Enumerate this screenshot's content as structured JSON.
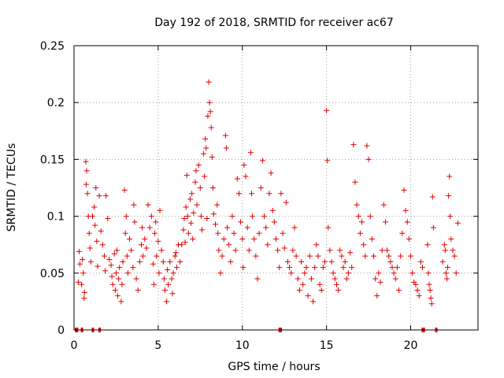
{
  "chart_data": {
    "type": "scatter",
    "title": "Day 192 of 2018, SRMTID for receiver ac67",
    "xlabel": "GPS time / hours",
    "ylabel": "SRMTID / TECUs",
    "xlim": [
      0,
      24
    ],
    "ylim": [
      0,
      0.25
    ],
    "xticks": [
      "0",
      "5",
      "10",
      "15",
      "20"
    ],
    "xtick_values": [
      0,
      5,
      10,
      15,
      20
    ],
    "yticks": [
      "0",
      "0.05",
      "0.1",
      "0.15",
      "0.2",
      "0.25"
    ],
    "ytick_values": [
      0,
      0.05,
      0.1,
      0.15,
      0.2,
      0.25
    ],
    "grid": true,
    "marker": "+",
    "color": "#e00000",
    "series": [
      {
        "name": "SRMTID",
        "points": [
          [
            0.25,
            0.042
          ],
          [
            0.3,
            0.069
          ],
          [
            0.35,
            0.058
          ],
          [
            0.45,
            0.04
          ],
          [
            0.5,
            0.062
          ],
          [
            0.55,
            0.05
          ],
          [
            0.6,
            0.028
          ],
          [
            0.62,
            0.033
          ],
          [
            0.7,
            0.148
          ],
          [
            0.72,
            0.128
          ],
          [
            0.75,
            0.14
          ],
          [
            0.8,
            0.12
          ],
          [
            0.85,
            0.1
          ],
          [
            0.9,
            0.085
          ],
          [
            0.95,
            0.072
          ],
          [
            1.0,
            0.06
          ],
          [
            1.1,
            0.1
          ],
          [
            1.2,
            0.108
          ],
          [
            1.25,
            0.092
          ],
          [
            1.3,
            0.125
          ],
          [
            1.35,
            0.078
          ],
          [
            1.4,
            0.056
          ],
          [
            1.5,
            0.118
          ],
          [
            1.6,
            0.087
          ],
          [
            1.7,
            0.075
          ],
          [
            1.8,
            0.065
          ],
          [
            1.85,
            0.052
          ],
          [
            1.9,
            0.118
          ],
          [
            2.0,
            0.098
          ],
          [
            2.1,
            0.062
          ],
          [
            2.2,
            0.057
          ],
          [
            2.25,
            0.047
          ],
          [
            2.3,
            0.04
          ],
          [
            2.4,
            0.067
          ],
          [
            2.45,
            0.035
          ],
          [
            2.5,
            0.05
          ],
          [
            2.55,
            0.07
          ],
          [
            2.6,
            0.03
          ],
          [
            2.65,
            0.045
          ],
          [
            2.7,
            0.055
          ],
          [
            2.8,
            0.025
          ],
          [
            2.85,
            0.04
          ],
          [
            2.9,
            0.06
          ],
          [
            3.0,
            0.123
          ],
          [
            3.05,
            0.085
          ],
          [
            3.1,
            0.1
          ],
          [
            3.15,
            0.065
          ],
          [
            3.2,
            0.05
          ],
          [
            3.3,
            0.08
          ],
          [
            3.4,
            0.07
          ],
          [
            3.5,
            0.055
          ],
          [
            3.55,
            0.11
          ],
          [
            3.6,
            0.095
          ],
          [
            3.7,
            0.045
          ],
          [
            3.8,
            0.035
          ],
          [
            3.9,
            0.06
          ],
          [
            4.0,
            0.075
          ],
          [
            4.05,
            0.09
          ],
          [
            4.1,
            0.065
          ],
          [
            4.2,
            0.08
          ],
          [
            4.3,
            0.072
          ],
          [
            4.4,
            0.11
          ],
          [
            4.5,
            0.09
          ],
          [
            4.6,
            0.1
          ],
          [
            4.7,
            0.058
          ],
          [
            4.75,
            0.04
          ],
          [
            4.8,
            0.085
          ],
          [
            4.85,
            0.095
          ],
          [
            4.9,
            0.065
          ],
          [
            5.0,
            0.078
          ],
          [
            5.05,
            0.05
          ],
          [
            5.1,
            0.105
          ],
          [
            5.2,
            0.07
          ],
          [
            5.3,
            0.06
          ],
          [
            5.35,
            0.045
          ],
          [
            5.4,
            0.035
          ],
          [
            5.5,
            0.025
          ],
          [
            5.55,
            0.053
          ],
          [
            5.6,
            0.04
          ],
          [
            5.7,
            0.06
          ],
          [
            5.8,
            0.045
          ],
          [
            5.85,
            0.032
          ],
          [
            5.9,
            0.05
          ],
          [
            6.0,
            0.065
          ],
          [
            6.05,
            0.068
          ],
          [
            6.1,
            0.055
          ],
          [
            6.2,
            0.075
          ],
          [
            6.3,
            0.06
          ],
          [
            6.4,
            0.075
          ],
          [
            6.5,
            0.088
          ],
          [
            6.55,
            0.098
          ],
          [
            6.6,
            0.077
          ],
          [
            6.65,
            0.108
          ],
          [
            6.7,
            0.136
          ],
          [
            6.75,
            0.1
          ],
          [
            6.8,
            0.085
          ],
          [
            6.9,
            0.115
          ],
          [
            6.95,
            0.094
          ],
          [
            7.0,
            0.12
          ],
          [
            7.05,
            0.08
          ],
          [
            7.1,
            0.103
          ],
          [
            7.2,
            0.13
          ],
          [
            7.25,
            0.14
          ],
          [
            7.3,
            0.11
          ],
          [
            7.4,
            0.145
          ],
          [
            7.5,
            0.125
          ],
          [
            7.55,
            0.1
          ],
          [
            7.6,
            0.088
          ],
          [
            7.7,
            0.155
          ],
          [
            7.75,
            0.135
          ],
          [
            7.8,
            0.168
          ],
          [
            7.85,
            0.16
          ],
          [
            7.9,
            0.098
          ],
          [
            7.95,
            0.188
          ],
          [
            8.0,
            0.218
          ],
          [
            8.05,
            0.2
          ],
          [
            8.1,
            0.192
          ],
          [
            8.15,
            0.178
          ],
          [
            8.2,
            0.152
          ],
          [
            8.25,
            0.125
          ],
          [
            8.3,
            0.102
          ],
          [
            8.4,
            0.093
          ],
          [
            8.5,
            0.11
          ],
          [
            8.55,
            0.085
          ],
          [
            8.6,
            0.07
          ],
          [
            8.7,
            0.05
          ],
          [
            8.8,
            0.065
          ],
          [
            8.9,
            0.08
          ],
          [
            9.0,
            0.171
          ],
          [
            9.05,
            0.16
          ],
          [
            9.1,
            0.09
          ],
          [
            9.2,
            0.075
          ],
          [
            9.3,
            0.06
          ],
          [
            9.4,
            0.1
          ],
          [
            9.5,
            0.085
          ],
          [
            9.6,
            0.07
          ],
          [
            9.7,
            0.133
          ],
          [
            9.8,
            0.12
          ],
          [
            9.9,
            0.095
          ],
          [
            10.0,
            0.08
          ],
          [
            10.05,
            0.055
          ],
          [
            10.1,
            0.145
          ],
          [
            10.2,
            0.135
          ],
          [
            10.3,
            0.09
          ],
          [
            10.4,
            0.07
          ],
          [
            10.5,
            0.156
          ],
          [
            10.55,
            0.12
          ],
          [
            10.6,
            0.1
          ],
          [
            10.7,
            0.08
          ],
          [
            10.8,
            0.065
          ],
          [
            10.9,
            0.045
          ],
          [
            11.0,
            0.085
          ],
          [
            11.1,
            0.125
          ],
          [
            11.2,
            0.149
          ],
          [
            11.3,
            0.1
          ],
          [
            11.4,
            0.09
          ],
          [
            11.5,
            0.075
          ],
          [
            11.6,
            0.12
          ],
          [
            11.7,
            0.138
          ],
          [
            11.8,
            0.105
          ],
          [
            11.9,
            0.095
          ],
          [
            12.0,
            0.08
          ],
          [
            12.1,
            0.07
          ],
          [
            12.2,
            0.055
          ],
          [
            12.3,
            0.12
          ],
          [
            12.4,
            0.085
          ],
          [
            12.5,
            0.072
          ],
          [
            12.6,
            0.112
          ],
          [
            12.7,
            0.06
          ],
          [
            12.8,
            0.055
          ],
          [
            12.9,
            0.05
          ],
          [
            13.0,
            0.07
          ],
          [
            13.1,
            0.09
          ],
          [
            13.2,
            0.065
          ],
          [
            13.3,
            0.045
          ],
          [
            13.4,
            0.035
          ],
          [
            13.5,
            0.06
          ],
          [
            13.6,
            0.04
          ],
          [
            13.7,
            0.05
          ],
          [
            13.8,
            0.055
          ],
          [
            13.9,
            0.03
          ],
          [
            14.0,
            0.065
          ],
          [
            14.1,
            0.045
          ],
          [
            14.2,
            0.025
          ],
          [
            14.3,
            0.055
          ],
          [
            14.4,
            0.075
          ],
          [
            14.5,
            0.065
          ],
          [
            14.6,
            0.04
          ],
          [
            14.7,
            0.035
          ],
          [
            14.8,
            0.055
          ],
          [
            14.9,
            0.06
          ],
          [
            15.0,
            0.193
          ],
          [
            15.05,
            0.149
          ],
          [
            15.1,
            0.09
          ],
          [
            15.2,
            0.07
          ],
          [
            15.3,
            0.06
          ],
          [
            15.4,
            0.05
          ],
          [
            15.5,
            0.045
          ],
          [
            15.6,
            0.04
          ],
          [
            15.7,
            0.035
          ],
          [
            15.8,
            0.07
          ],
          [
            15.9,
            0.065
          ],
          [
            16.0,
            0.055
          ],
          [
            16.1,
            0.06
          ],
          [
            16.2,
            0.045
          ],
          [
            16.3,
            0.05
          ],
          [
            16.4,
            0.068
          ],
          [
            16.5,
            0.055
          ],
          [
            16.6,
            0.163
          ],
          [
            16.7,
            0.13
          ],
          [
            16.8,
            0.11
          ],
          [
            16.9,
            0.1
          ],
          [
            17.0,
            0.085
          ],
          [
            17.1,
            0.095
          ],
          [
            17.2,
            0.075
          ],
          [
            17.3,
            0.065
          ],
          [
            17.4,
            0.162
          ],
          [
            17.5,
            0.15
          ],
          [
            17.6,
            0.1
          ],
          [
            17.7,
            0.08
          ],
          [
            17.8,
            0.065
          ],
          [
            17.9,
            0.045
          ],
          [
            18.0,
            0.03
          ],
          [
            18.1,
            0.05
          ],
          [
            18.2,
            0.042
          ],
          [
            18.3,
            0.07
          ],
          [
            18.4,
            0.11
          ],
          [
            18.5,
            0.095
          ],
          [
            18.6,
            0.07
          ],
          [
            18.7,
            0.065
          ],
          [
            18.8,
            0.06
          ],
          [
            18.9,
            0.055
          ],
          [
            19.0,
            0.05
          ],
          [
            19.1,
            0.045
          ],
          [
            19.2,
            0.055
          ],
          [
            19.3,
            0.035
          ],
          [
            19.4,
            0.065
          ],
          [
            19.5,
            0.085
          ],
          [
            19.6,
            0.123
          ],
          [
            19.7,
            0.105
          ],
          [
            19.8,
            0.095
          ],
          [
            19.9,
            0.08
          ],
          [
            20.0,
            0.065
          ],
          [
            20.1,
            0.05
          ],
          [
            20.2,
            0.042
          ],
          [
            20.3,
            0.04
          ],
          [
            20.4,
            0.035
          ],
          [
            20.5,
            0.03
          ],
          [
            20.6,
            0.06
          ],
          [
            20.7,
            0.055
          ],
          [
            21.0,
            0.075
          ],
          [
            21.05,
            0.05
          ],
          [
            21.1,
            0.04
          ],
          [
            21.15,
            0.035
          ],
          [
            21.2,
            0.028
          ],
          [
            21.25,
            0.023
          ],
          [
            21.3,
            0.117
          ],
          [
            21.35,
            0.09
          ],
          [
            21.9,
            0.06
          ],
          [
            22.0,
            0.075
          ],
          [
            22.05,
            0.07
          ],
          [
            22.1,
            0.05
          ],
          [
            22.15,
            0.045
          ],
          [
            22.2,
            0.055
          ],
          [
            22.25,
            0.118
          ],
          [
            22.3,
            0.135
          ],
          [
            22.35,
            0.1
          ],
          [
            22.4,
            0.08
          ],
          [
            22.5,
            0.07
          ],
          [
            22.6,
            0.065
          ],
          [
            22.7,
            0.05
          ],
          [
            22.8,
            0.094
          ]
        ]
      }
    ],
    "zero_segments": [
      [
        0.05,
        0.25
      ],
      [
        0.4,
        0.5
      ],
      [
        1.05,
        1.15
      ],
      [
        1.45,
        1.55
      ],
      [
        12.15,
        12.35
      ],
      [
        20.65,
        20.85
      ],
      [
        21.45,
        21.55
      ]
    ]
  }
}
